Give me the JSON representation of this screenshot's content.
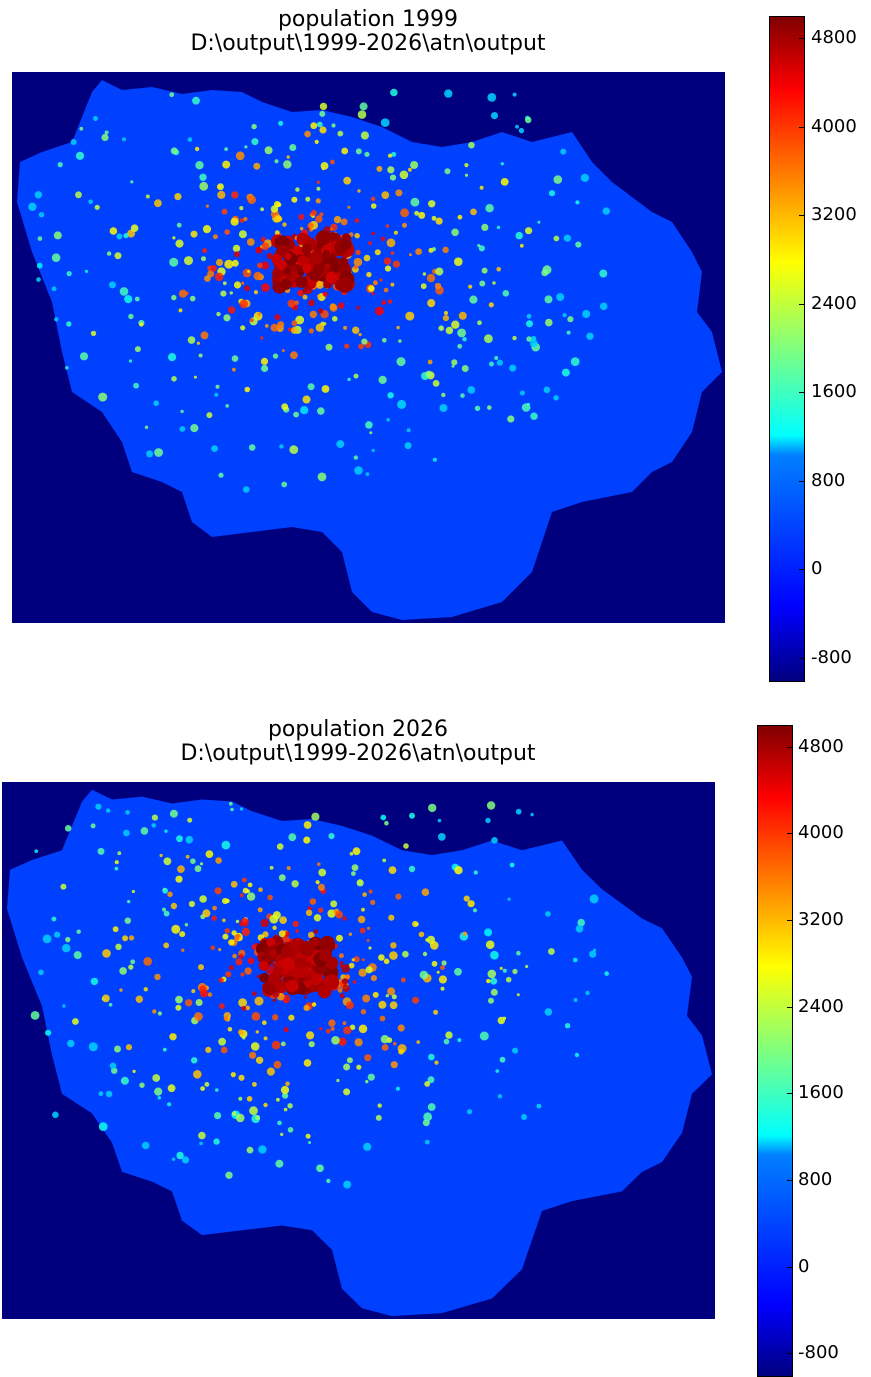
{
  "chart_data": [
    {
      "type": "heatmap",
      "title": "population 1999",
      "subtitle": "D:\\output\\1999-2026\\atn\\output",
      "colormap": "jet",
      "clim": [
        -1000,
        5000
      ],
      "colorbar_ticks": [
        -800,
        0,
        800,
        1600,
        2400,
        3200,
        4000,
        4800
      ],
      "background_value_color": "#00007f",
      "region_value_color": "#0040ff"
    },
    {
      "type": "heatmap",
      "title": "population 2026",
      "subtitle": "D:\\output\\1999-2026\\atn\\output",
      "colormap": "jet",
      "clim": [
        -1000,
        5000
      ],
      "colorbar_ticks": [
        -800,
        0,
        800,
        1600,
        2400,
        3200,
        4000,
        4800
      ],
      "background_value_color": "#00007f",
      "region_value_color": "#0040ff"
    }
  ]
}
